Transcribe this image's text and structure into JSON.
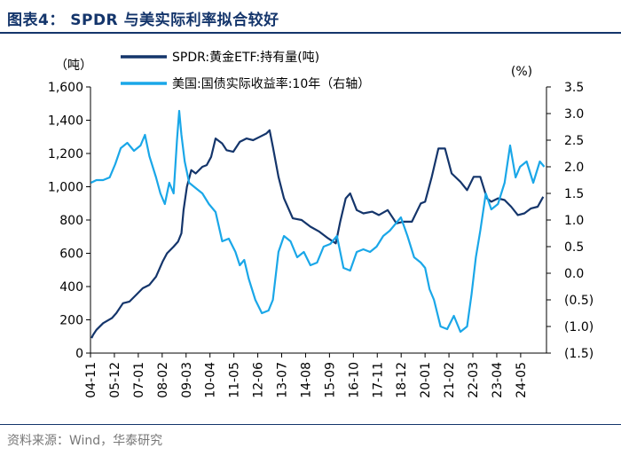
{
  "page": {
    "title": "图表4：   SPDR 与美实际利率拟合较好",
    "source": "资料来源：Wind，华泰研究"
  },
  "colors": {
    "spdr": "#14356b",
    "real_rate": "#1aa7e8",
    "axis": "#000000",
    "rule": "#14356b"
  },
  "chart_data": {
    "type": "line",
    "title": "图表4：   SPDR 与美实际利率拟合较好",
    "y_left": {
      "label": "（吨）",
      "range": [
        0,
        1600
      ],
      "ticks": [
        "0",
        "200",
        "400",
        "600",
        "800",
        "1,000",
        "1,200",
        "1,400",
        "1,600"
      ]
    },
    "y_right": {
      "label": "(%)",
      "range": [
        -1.5,
        3.5
      ],
      "ticks": [
        "(1.5)",
        "(1.0)",
        "(0.5)",
        "0.0",
        "0.5",
        "1.0",
        "1.5",
        "2.0",
        "2.5",
        "3.0",
        "3.5"
      ]
    },
    "x": {
      "range": [
        2004.83,
        2025.5
      ],
      "tick_labels": [
        "04-11",
        "05-12",
        "07-01",
        "08-02",
        "09-03",
        "10-04",
        "11-05",
        "12-06",
        "13-07",
        "14-08",
        "15-09",
        "16-10",
        "17-11",
        "18-12",
        "20-01",
        "21-02",
        "22-03",
        "23-04",
        "24-05"
      ]
    },
    "legend": [
      "SPDR:黄金ETF:持有量(吨)",
      "美国:国债实际收益率:10年（右轴）"
    ],
    "series": [
      {
        "name": "SPDR:黄金ETF:持有量(吨)",
        "axis": "left",
        "points": [
          [
            2004.88,
            90
          ],
          [
            2004.95,
            110
          ],
          [
            2005.1,
            140
          ],
          [
            2005.4,
            180
          ],
          [
            2005.8,
            210
          ],
          [
            2006.0,
            240
          ],
          [
            2006.3,
            300
          ],
          [
            2006.6,
            310
          ],
          [
            2006.9,
            350
          ],
          [
            2007.2,
            390
          ],
          [
            2007.5,
            410
          ],
          [
            2007.8,
            460
          ],
          [
            2008.1,
            550
          ],
          [
            2008.3,
            600
          ],
          [
            2008.6,
            640
          ],
          [
            2008.8,
            670
          ],
          [
            2008.95,
            720
          ],
          [
            2009.05,
            860
          ],
          [
            2009.2,
            1000
          ],
          [
            2009.4,
            1100
          ],
          [
            2009.6,
            1080
          ],
          [
            2009.9,
            1120
          ],
          [
            2010.1,
            1130
          ],
          [
            2010.3,
            1180
          ],
          [
            2010.5,
            1290
          ],
          [
            2010.8,
            1260
          ],
          [
            2011.0,
            1220
          ],
          [
            2011.3,
            1210
          ],
          [
            2011.6,
            1270
          ],
          [
            2011.9,
            1290
          ],
          [
            2012.2,
            1280
          ],
          [
            2012.5,
            1300
          ],
          [
            2012.8,
            1320
          ],
          [
            2012.95,
            1340
          ],
          [
            2013.1,
            1240
          ],
          [
            2013.35,
            1060
          ],
          [
            2013.6,
            930
          ],
          [
            2014.0,
            810
          ],
          [
            2014.4,
            800
          ],
          [
            2014.8,
            760
          ],
          [
            2015.2,
            730
          ],
          [
            2015.6,
            690
          ],
          [
            2015.95,
            660
          ],
          [
            2016.15,
            790
          ],
          [
            2016.4,
            930
          ],
          [
            2016.6,
            960
          ],
          [
            2016.9,
            860
          ],
          [
            2017.2,
            840
          ],
          [
            2017.6,
            850
          ],
          [
            2017.9,
            830
          ],
          [
            2018.3,
            860
          ],
          [
            2018.7,
            780
          ],
          [
            2019.0,
            790
          ],
          [
            2019.4,
            790
          ],
          [
            2019.8,
            900
          ],
          [
            2020.0,
            910
          ],
          [
            2020.3,
            1060
          ],
          [
            2020.6,
            1230
          ],
          [
            2020.9,
            1230
          ],
          [
            2021.2,
            1080
          ],
          [
            2021.6,
            1030
          ],
          [
            2021.9,
            980
          ],
          [
            2022.2,
            1060
          ],
          [
            2022.5,
            1060
          ],
          [
            2022.8,
            930
          ],
          [
            2023.0,
            910
          ],
          [
            2023.3,
            930
          ],
          [
            2023.6,
            920
          ],
          [
            2023.9,
            880
          ],
          [
            2024.2,
            830
          ],
          [
            2024.5,
            840
          ],
          [
            2024.8,
            870
          ],
          [
            2025.1,
            880
          ],
          [
            2025.35,
            940
          ]
        ]
      },
      {
        "name": "美国:国债实际收益率:10年（右轴）",
        "axis": "right",
        "points": [
          [
            2004.85,
            1.7
          ],
          [
            2005.1,
            1.75
          ],
          [
            2005.4,
            1.75
          ],
          [
            2005.7,
            1.8
          ],
          [
            2005.95,
            2.05
          ],
          [
            2006.2,
            2.35
          ],
          [
            2006.5,
            2.45
          ],
          [
            2006.8,
            2.3
          ],
          [
            2007.1,
            2.4
          ],
          [
            2007.3,
            2.6
          ],
          [
            2007.5,
            2.2
          ],
          [
            2007.8,
            1.8
          ],
          [
            2008.0,
            1.5
          ],
          [
            2008.2,
            1.3
          ],
          [
            2008.4,
            1.7
          ],
          [
            2008.6,
            1.5
          ],
          [
            2008.75,
            2.5
          ],
          [
            2008.85,
            3.05
          ],
          [
            2008.95,
            2.6
          ],
          [
            2009.1,
            2.1
          ],
          [
            2009.3,
            1.7
          ],
          [
            2009.6,
            1.6
          ],
          [
            2009.9,
            1.5
          ],
          [
            2010.2,
            1.3
          ],
          [
            2010.5,
            1.15
          ],
          [
            2010.8,
            0.6
          ],
          [
            2011.1,
            0.65
          ],
          [
            2011.4,
            0.4
          ],
          [
            2011.6,
            0.15
          ],
          [
            2011.8,
            0.25
          ],
          [
            2012.0,
            -0.1
          ],
          [
            2012.3,
            -0.5
          ],
          [
            2012.6,
            -0.75
          ],
          [
            2012.9,
            -0.7
          ],
          [
            2013.1,
            -0.5
          ],
          [
            2013.35,
            0.4
          ],
          [
            2013.6,
            0.7
          ],
          [
            2013.9,
            0.6
          ],
          [
            2014.2,
            0.3
          ],
          [
            2014.5,
            0.4
          ],
          [
            2014.8,
            0.15
          ],
          [
            2015.1,
            0.2
          ],
          [
            2015.4,
            0.5
          ],
          [
            2015.7,
            0.55
          ],
          [
            2016.0,
            0.7
          ],
          [
            2016.3,
            0.1
          ],
          [
            2016.6,
            0.05
          ],
          [
            2016.9,
            0.4
          ],
          [
            2017.2,
            0.45
          ],
          [
            2017.5,
            0.4
          ],
          [
            2017.8,
            0.5
          ],
          [
            2018.1,
            0.7
          ],
          [
            2018.4,
            0.8
          ],
          [
            2018.7,
            0.95
          ],
          [
            2018.9,
            1.05
          ],
          [
            2019.2,
            0.7
          ],
          [
            2019.5,
            0.3
          ],
          [
            2019.8,
            0.2
          ],
          [
            2020.0,
            0.1
          ],
          [
            2020.2,
            -0.3
          ],
          [
            2020.4,
            -0.5
          ],
          [
            2020.7,
            -1.0
          ],
          [
            2021.0,
            -1.05
          ],
          [
            2021.3,
            -0.8
          ],
          [
            2021.6,
            -1.1
          ],
          [
            2021.9,
            -1.0
          ],
          [
            2022.1,
            -0.4
          ],
          [
            2022.3,
            0.3
          ],
          [
            2022.5,
            0.8
          ],
          [
            2022.75,
            1.5
          ],
          [
            2023.0,
            1.2
          ],
          [
            2023.3,
            1.3
          ],
          [
            2023.6,
            1.7
          ],
          [
            2023.85,
            2.4
          ],
          [
            2024.1,
            1.8
          ],
          [
            2024.3,
            2.0
          ],
          [
            2024.6,
            2.1
          ],
          [
            2024.9,
            1.7
          ],
          [
            2025.2,
            2.1
          ],
          [
            2025.4,
            2.0
          ]
        ]
      }
    ]
  }
}
